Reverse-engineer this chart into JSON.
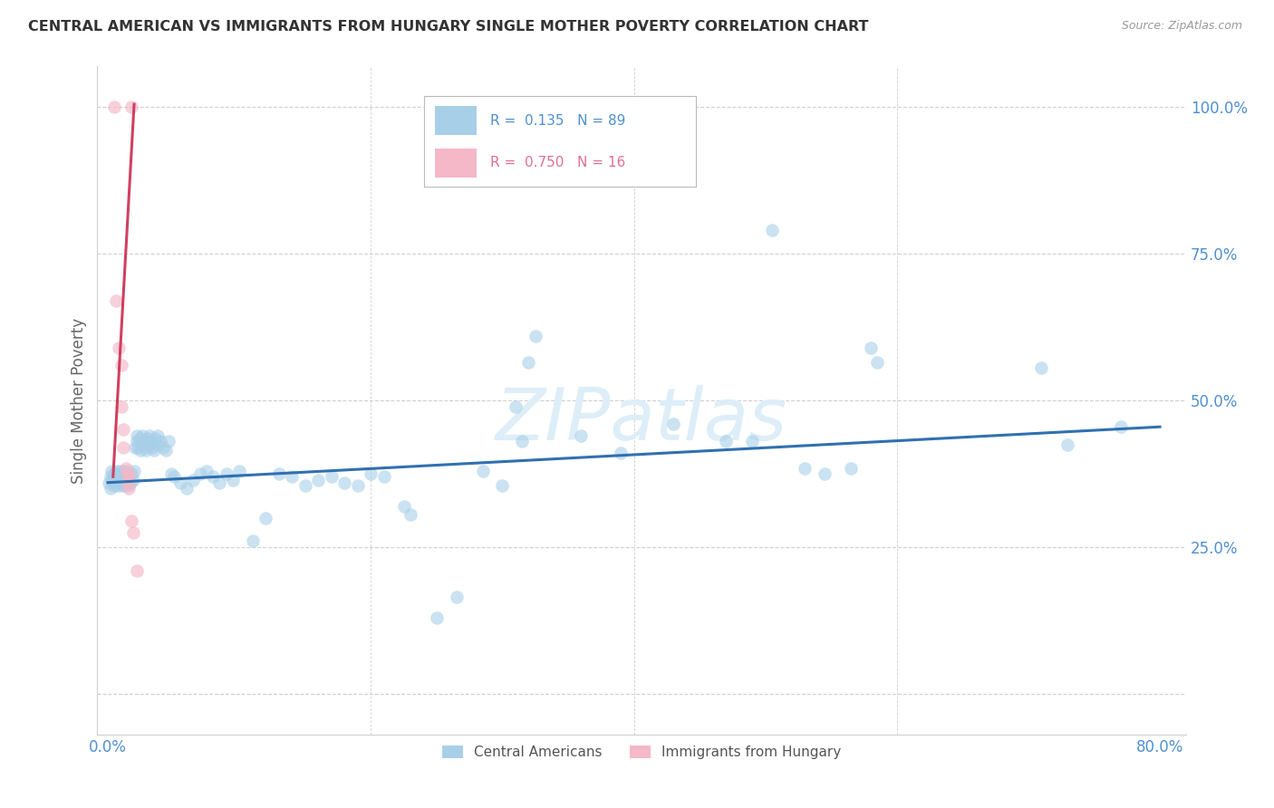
{
  "title": "CENTRAL AMERICAN VS IMMIGRANTS FROM HUNGARY SINGLE MOTHER POVERTY CORRELATION CHART",
  "source": "Source: ZipAtlas.com",
  "ylabel": "Single Mother Poverty",
  "yticks": [
    0.0,
    0.25,
    0.5,
    0.75,
    1.0
  ],
  "ytick_labels": [
    "",
    "25.0%",
    "50.0%",
    "75.0%",
    "100.0%"
  ],
  "xlim": [
    -0.008,
    0.82
  ],
  "ylim": [
    -0.07,
    1.07
  ],
  "blue_color": "#a8cfe8",
  "pink_color": "#f4b8c8",
  "blue_line_color": "#3070b0",
  "pink_line_color": "#d04060",
  "background_color": "#ffffff",
  "grid_color": "#d0d0d0",
  "title_color": "#333333",
  "axis_tick_color": "#5090d0",
  "watermark": "ZIPatlas",
  "watermark_color": "#ddeef8",
  "blue_scatter": [
    [
      0.001,
      0.36
    ],
    [
      0.002,
      0.35
    ],
    [
      0.002,
      0.37
    ],
    [
      0.003,
      0.365
    ],
    [
      0.003,
      0.38
    ],
    [
      0.004,
      0.355
    ],
    [
      0.004,
      0.37
    ],
    [
      0.005,
      0.36
    ],
    [
      0.005,
      0.375
    ],
    [
      0.006,
      0.365
    ],
    [
      0.006,
      0.38
    ],
    [
      0.007,
      0.355
    ],
    [
      0.007,
      0.37
    ],
    [
      0.008,
      0.36
    ],
    [
      0.008,
      0.375
    ],
    [
      0.009,
      0.365
    ],
    [
      0.009,
      0.38
    ],
    [
      0.01,
      0.355
    ],
    [
      0.01,
      0.37
    ],
    [
      0.011,
      0.36
    ],
    [
      0.011,
      0.375
    ],
    [
      0.012,
      0.365
    ],
    [
      0.012,
      0.38
    ],
    [
      0.013,
      0.355
    ],
    [
      0.013,
      0.37
    ],
    [
      0.014,
      0.36
    ],
    [
      0.014,
      0.375
    ],
    [
      0.015,
      0.365
    ],
    [
      0.015,
      0.38
    ],
    [
      0.016,
      0.355
    ],
    [
      0.016,
      0.37
    ],
    [
      0.017,
      0.36
    ],
    [
      0.018,
      0.375
    ],
    [
      0.019,
      0.365
    ],
    [
      0.02,
      0.38
    ],
    [
      0.021,
      0.42
    ],
    [
      0.022,
      0.43
    ],
    [
      0.022,
      0.44
    ],
    [
      0.023,
      0.42
    ],
    [
      0.024,
      0.435
    ],
    [
      0.025,
      0.425
    ],
    [
      0.025,
      0.415
    ],
    [
      0.026,
      0.44
    ],
    [
      0.027,
      0.43
    ],
    [
      0.028,
      0.42
    ],
    [
      0.029,
      0.415
    ],
    [
      0.03,
      0.435
    ],
    [
      0.031,
      0.425
    ],
    [
      0.032,
      0.44
    ],
    [
      0.033,
      0.43
    ],
    [
      0.034,
      0.42
    ],
    [
      0.035,
      0.415
    ],
    [
      0.036,
      0.435
    ],
    [
      0.037,
      0.425
    ],
    [
      0.038,
      0.44
    ],
    [
      0.04,
      0.43
    ],
    [
      0.042,
      0.42
    ],
    [
      0.044,
      0.415
    ],
    [
      0.046,
      0.43
    ],
    [
      0.048,
      0.375
    ],
    [
      0.05,
      0.37
    ],
    [
      0.055,
      0.36
    ],
    [
      0.06,
      0.35
    ],
    [
      0.065,
      0.365
    ],
    [
      0.07,
      0.375
    ],
    [
      0.075,
      0.38
    ],
    [
      0.08,
      0.37
    ],
    [
      0.085,
      0.36
    ],
    [
      0.09,
      0.375
    ],
    [
      0.095,
      0.365
    ],
    [
      0.1,
      0.38
    ],
    [
      0.11,
      0.26
    ],
    [
      0.12,
      0.3
    ],
    [
      0.13,
      0.375
    ],
    [
      0.14,
      0.37
    ],
    [
      0.15,
      0.355
    ],
    [
      0.16,
      0.365
    ],
    [
      0.17,
      0.37
    ],
    [
      0.18,
      0.36
    ],
    [
      0.19,
      0.355
    ],
    [
      0.2,
      0.375
    ],
    [
      0.21,
      0.37
    ],
    [
      0.225,
      0.32
    ],
    [
      0.23,
      0.305
    ],
    [
      0.25,
      0.13
    ],
    [
      0.265,
      0.165
    ],
    [
      0.285,
      0.38
    ],
    [
      0.3,
      0.355
    ],
    [
      0.31,
      0.49
    ],
    [
      0.315,
      0.43
    ],
    [
      0.32,
      0.565
    ],
    [
      0.325,
      0.61
    ],
    [
      0.36,
      0.44
    ],
    [
      0.39,
      0.41
    ],
    [
      0.43,
      0.46
    ],
    [
      0.47,
      0.43
    ],
    [
      0.49,
      0.43
    ],
    [
      0.505,
      0.79
    ],
    [
      0.53,
      0.385
    ],
    [
      0.545,
      0.375
    ],
    [
      0.565,
      0.385
    ],
    [
      0.58,
      0.59
    ],
    [
      0.585,
      0.565
    ],
    [
      0.71,
      0.555
    ],
    [
      0.73,
      0.425
    ],
    [
      0.77,
      0.455
    ]
  ],
  "pink_scatter": [
    [
      0.005,
      1.0
    ],
    [
      0.018,
      1.0
    ],
    [
      0.006,
      0.67
    ],
    [
      0.008,
      0.59
    ],
    [
      0.01,
      0.56
    ],
    [
      0.01,
      0.49
    ],
    [
      0.012,
      0.45
    ],
    [
      0.012,
      0.42
    ],
    [
      0.014,
      0.385
    ],
    [
      0.015,
      0.375
    ],
    [
      0.015,
      0.36
    ],
    [
      0.016,
      0.35
    ],
    [
      0.016,
      0.37
    ],
    [
      0.018,
      0.295
    ],
    [
      0.019,
      0.275
    ],
    [
      0.022,
      0.21
    ]
  ],
  "blue_trendline_x": [
    0.0,
    0.8
  ],
  "blue_trendline_y": [
    0.36,
    0.455
  ],
  "pink_trendline_x": [
    0.004,
    0.02
  ],
  "pink_trendline_y": [
    0.37,
    1.005
  ],
  "legend_r1_color": "#5090d0",
  "legend_r2_color": "#e07090",
  "legend_box_color": "#a8cfe8",
  "legend_box2_color": "#f4b8c8",
  "bottom_legend_labels": [
    "Central Americans",
    "Immigrants from Hungary"
  ]
}
